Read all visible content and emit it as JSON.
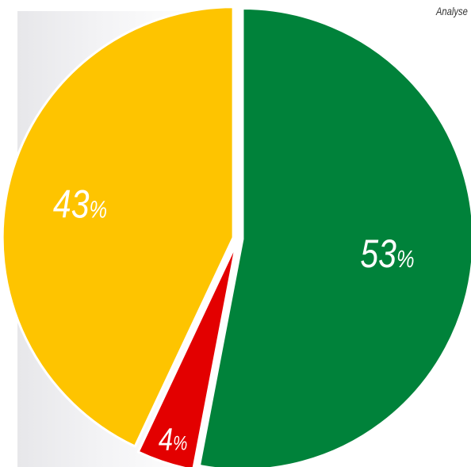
{
  "header": {
    "corner_text": "Analyse"
  },
  "chart_data": {
    "type": "pie",
    "title": "",
    "start_angle_deg": 0,
    "direction": "clockwise",
    "explode_gap": "white separators",
    "slices": [
      {
        "label": "53%",
        "value": 53,
        "color": "#00823a"
      },
      {
        "label": "4%",
        "value": 4,
        "color": "#e30000"
      },
      {
        "label": "43%",
        "value": 43,
        "color": "#fec400"
      }
    ]
  }
}
